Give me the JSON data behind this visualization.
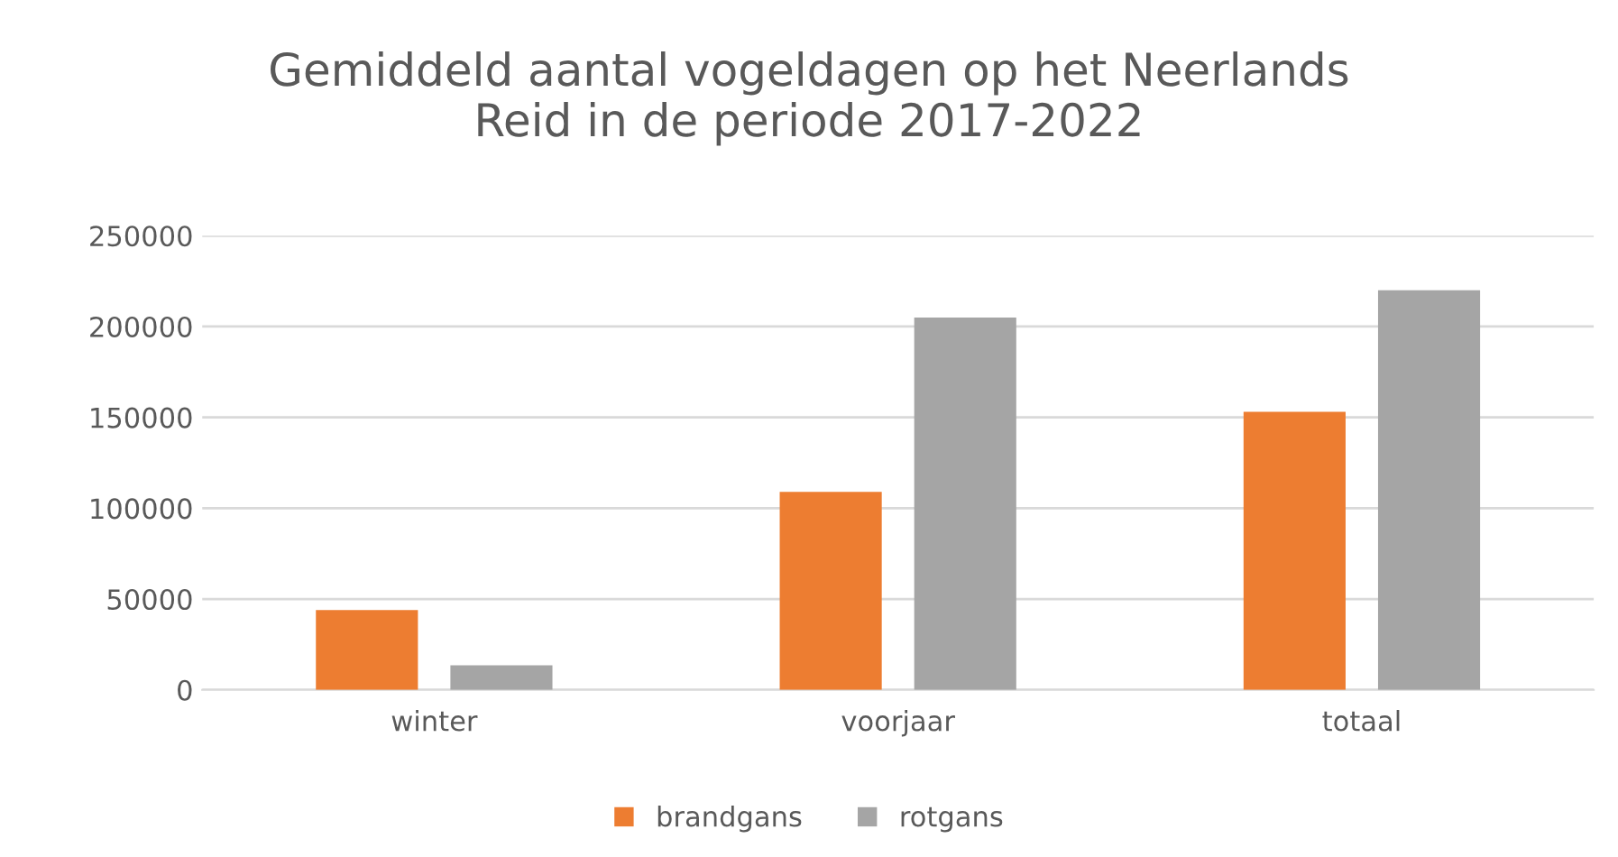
{
  "chart_data": {
    "type": "bar",
    "title": "Gemiddeld aantal vogeldagen op het Neerlands\nReid in de periode 2017-2022",
    "categories": [
      "winter",
      "voorjaar",
      "totaal"
    ],
    "series": [
      {
        "name": "brandgans",
        "color": "#ed7d31",
        "values": [
          44000,
          109000,
          153000
        ]
      },
      {
        "name": "rotgans",
        "color": "#a5a5a5",
        "values": [
          13500,
          205000,
          220000
        ]
      }
    ],
    "ylim": [
      0,
      250000
    ],
    "yticks": [
      0,
      50000,
      100000,
      150000,
      200000,
      250000
    ],
    "grid": "y",
    "legend": "bottom"
  }
}
